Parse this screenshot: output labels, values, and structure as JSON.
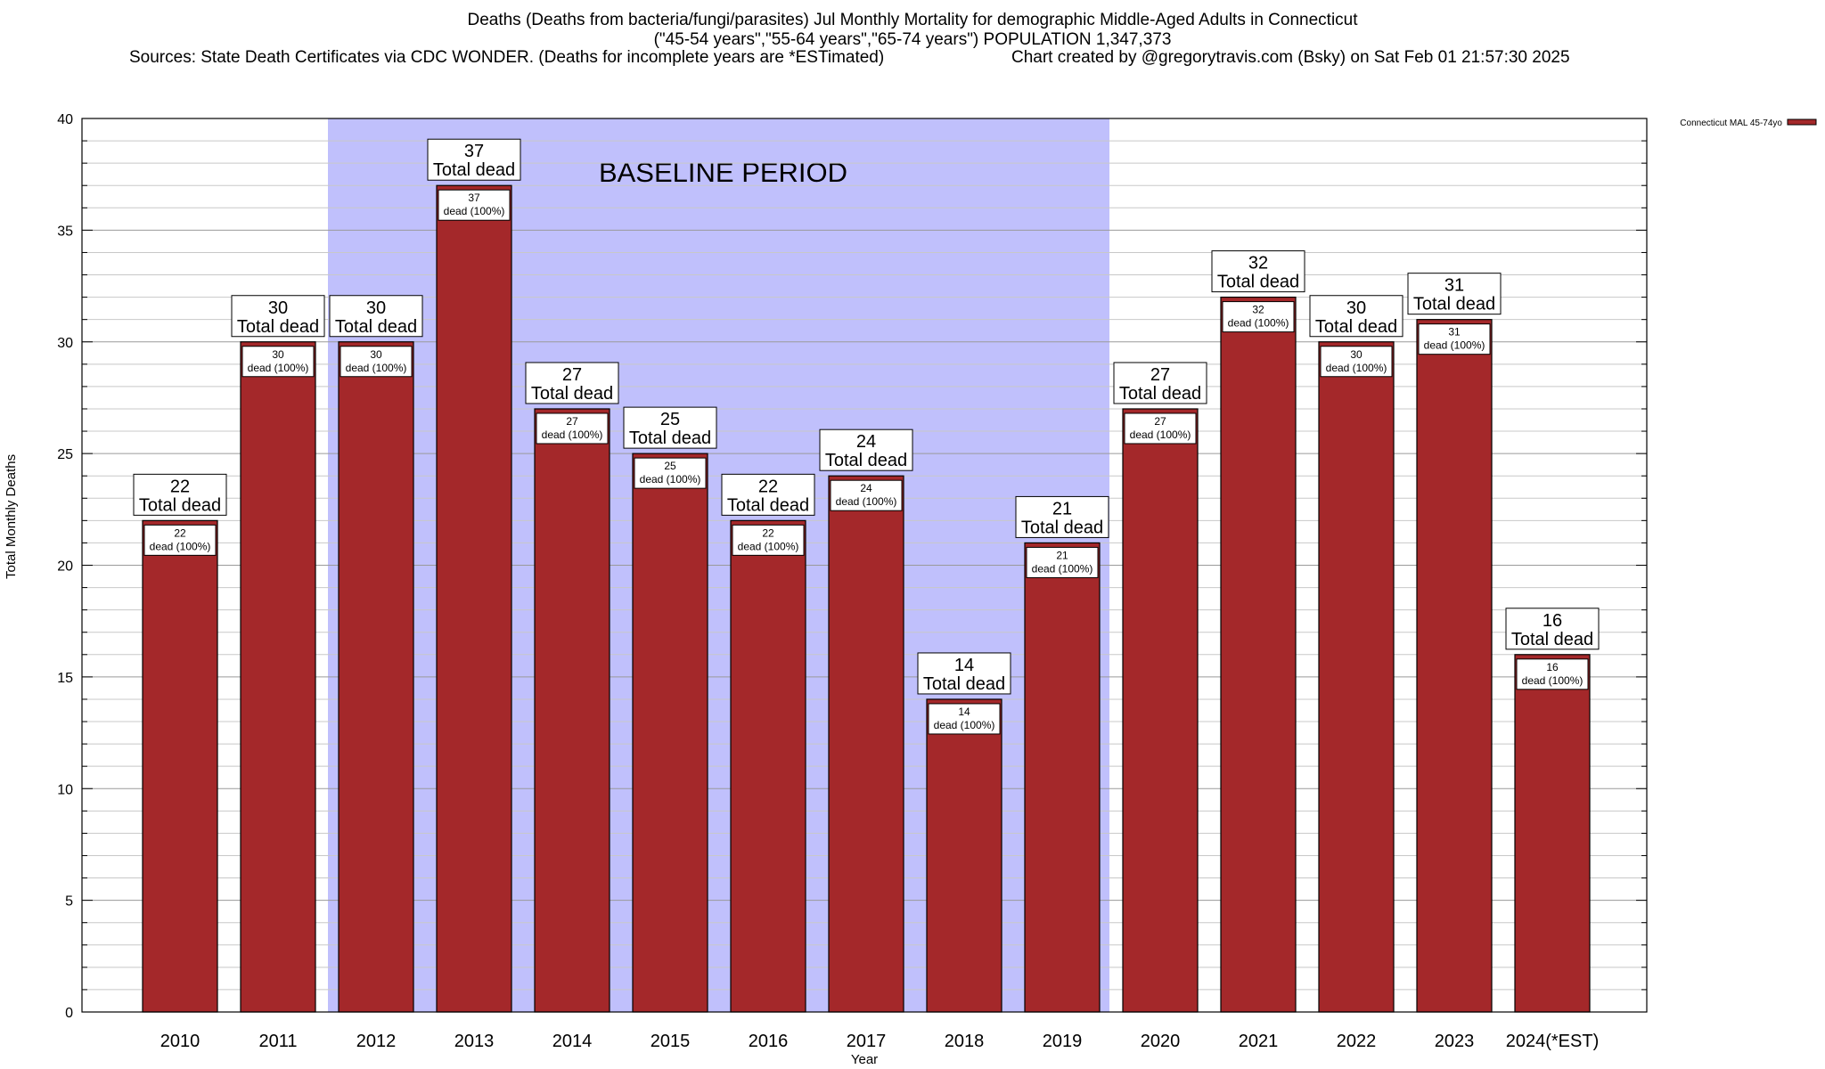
{
  "title": {
    "line1": "Deaths (Deaths from bacteria/fungi/parasites) Jul Monthly Mortality for demographic Middle-Aged Adults in Connecticut",
    "line2": "(\"45-54 years\",\"55-64 years\",\"65-74 years\") POPULATION 1,347,373",
    "line3": "Sources: State Death Certificates via CDC WONDER. (Deaths for incomplete years are *ESTimated)",
    "credit": "Chart created by @gregorytravis.com (Bsky) on Sat Feb 01 21:57:30 2025"
  },
  "chart_data": {
    "type": "bar",
    "xlabel": "Year",
    "ylabel": "Total Monthly Deaths",
    "ylim": [
      0,
      40
    ],
    "yticks": [
      0,
      5,
      10,
      15,
      20,
      25,
      30,
      35,
      40
    ],
    "grid": true,
    "legend_position": "top-right",
    "categories": [
      "2010",
      "2011",
      "2012",
      "2013",
      "2014",
      "2015",
      "2016",
      "2017",
      "2018",
      "2019",
      "2020",
      "2021",
      "2022",
      "2023",
      "2024(*EST)"
    ],
    "series": [
      {
        "name": "Connecticut MAL 45-74yo",
        "color": "#a4282a",
        "values": [
          22,
          30,
          30,
          37,
          27,
          25,
          22,
          24,
          14,
          21,
          27,
          32,
          30,
          31,
          16
        ]
      }
    ],
    "top_labels": [
      "22\nTotal dead",
      "30\nTotal dead",
      "30\nTotal dead",
      "37\nTotal dead",
      "27\nTotal dead",
      "25\nTotal dead",
      "22\nTotal dead",
      "24\nTotal dead",
      "14\nTotal dead",
      "21\nTotal dead",
      "27\nTotal dead",
      "32\nTotal dead",
      "30\nTotal dead",
      "31\nTotal dead",
      "16\nTotal dead"
    ],
    "inner_labels": [
      "22\ndead (100%)",
      "30\ndead (100%)",
      "30\ndead (100%)",
      "37\ndead (100%)",
      "27\ndead (100%)",
      "25\ndead (100%)",
      "22\ndead (100%)",
      "24\ndead (100%)",
      "14\ndead (100%)",
      "21\ndead (100%)",
      "27\ndead (100%)",
      "32\ndead (100%)",
      "30\ndead (100%)",
      "31\ndead (100%)",
      "16\ndead (100%)"
    ],
    "annotations": [
      {
        "text": "BASELINE PERIOD",
        "from_category": "2012",
        "to_category": "2019",
        "color": "#c0c0fc"
      }
    ]
  }
}
